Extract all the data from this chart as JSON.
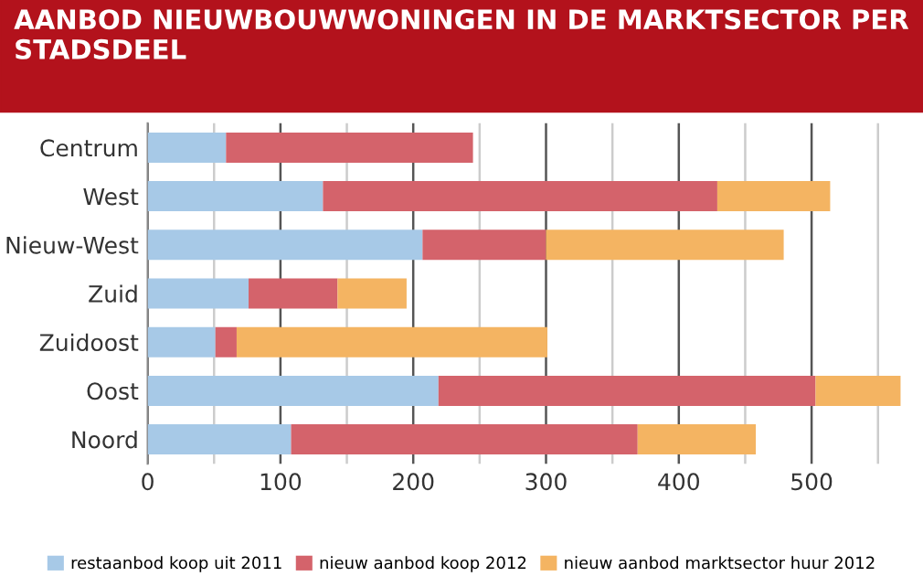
{
  "chart_data": {
    "type": "bar",
    "orientation": "horizontal",
    "stacked": true,
    "title": "AANBOD NIEUWBOUWWONINGEN IN DE MARKTSECTOR PER STADSDEEL",
    "categories": [
      "Centrum",
      "West",
      "Nieuw-West",
      "Zuid",
      "Zuidoost",
      "Oost",
      "Noord"
    ],
    "series": [
      {
        "name": "restaanbod koop uit 2011",
        "color": "#a7c9e7",
        "values": [
          59,
          132,
          207,
          76,
          51,
          219,
          108
        ]
      },
      {
        "name": "nieuw aanbod koop 2012",
        "color": "#d4636b",
        "values": [
          186,
          297,
          93,
          67,
          16,
          284,
          261
        ]
      },
      {
        "name": "nieuw aanbod marktsector huur 2012",
        "color": "#f4b462",
        "values": [
          0,
          85,
          179,
          52,
          234,
          64,
          89
        ]
      }
    ],
    "xlim": [
      0,
      570
    ],
    "xticks": [
      0,
      {
        "value": 50,
        "label": null
      },
      100,
      {
        "value": 150,
        "label": null
      },
      200,
      {
        "value": 250,
        "label": null
      },
      300,
      {
        "value": 350,
        "label": null
      },
      400,
      {
        "value": 450,
        "label": null
      },
      500,
      {
        "value": 550,
        "label": null
      }
    ],
    "grid": "x",
    "legend": "bottom"
  }
}
